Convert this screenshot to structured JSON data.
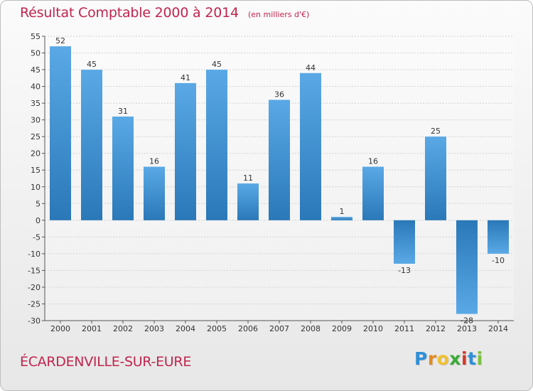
{
  "header": {
    "title": "Résultat Comptable 2000 à 2014",
    "subtitle": "(en milliers d'€)"
  },
  "footer": {
    "place": "ÉCARDENVILLE-SUR-EURE"
  },
  "logo": {
    "letters": [
      "P",
      "r",
      "o",
      "x",
      "i",
      "t",
      "i"
    ],
    "colors": [
      "#2f8fd6",
      "#e58a1f",
      "#f2c12e",
      "#3aa935",
      "#d03a2a",
      "#2f8fd6",
      "#7cc242"
    ]
  },
  "colors": {
    "bar_top": "#5aa9e6",
    "bar_bottom": "#2a78b8",
    "title": "#c0254d"
  },
  "chart_data": {
    "type": "bar",
    "title": "Résultat Comptable 2000 à 2014",
    "subtitle": "(en milliers d'€)",
    "xlabel": "",
    "ylabel": "",
    "categories": [
      "2000",
      "2001",
      "2002",
      "2003",
      "2004",
      "2005",
      "2006",
      "2007",
      "2008",
      "2009",
      "2010",
      "2011",
      "2012",
      "2013",
      "2014"
    ],
    "values": [
      52,
      45,
      31,
      16,
      41,
      45,
      11,
      36,
      44,
      1,
      16,
      -13,
      25,
      -28,
      -10
    ],
    "value_labels": [
      "52",
      "45",
      "31",
      "16",
      "41",
      "45",
      "11",
      "36",
      "44",
      "1",
      "16",
      "-13",
      "25",
      "-28",
      "-10"
    ],
    "ylim": [
      -30,
      55
    ],
    "yticks": [
      55,
      50,
      45,
      40,
      35,
      30,
      25,
      20,
      15,
      10,
      5,
      0,
      -5,
      -10,
      -15,
      -20,
      -25,
      -30
    ],
    "grid": true,
    "legend": "none"
  }
}
